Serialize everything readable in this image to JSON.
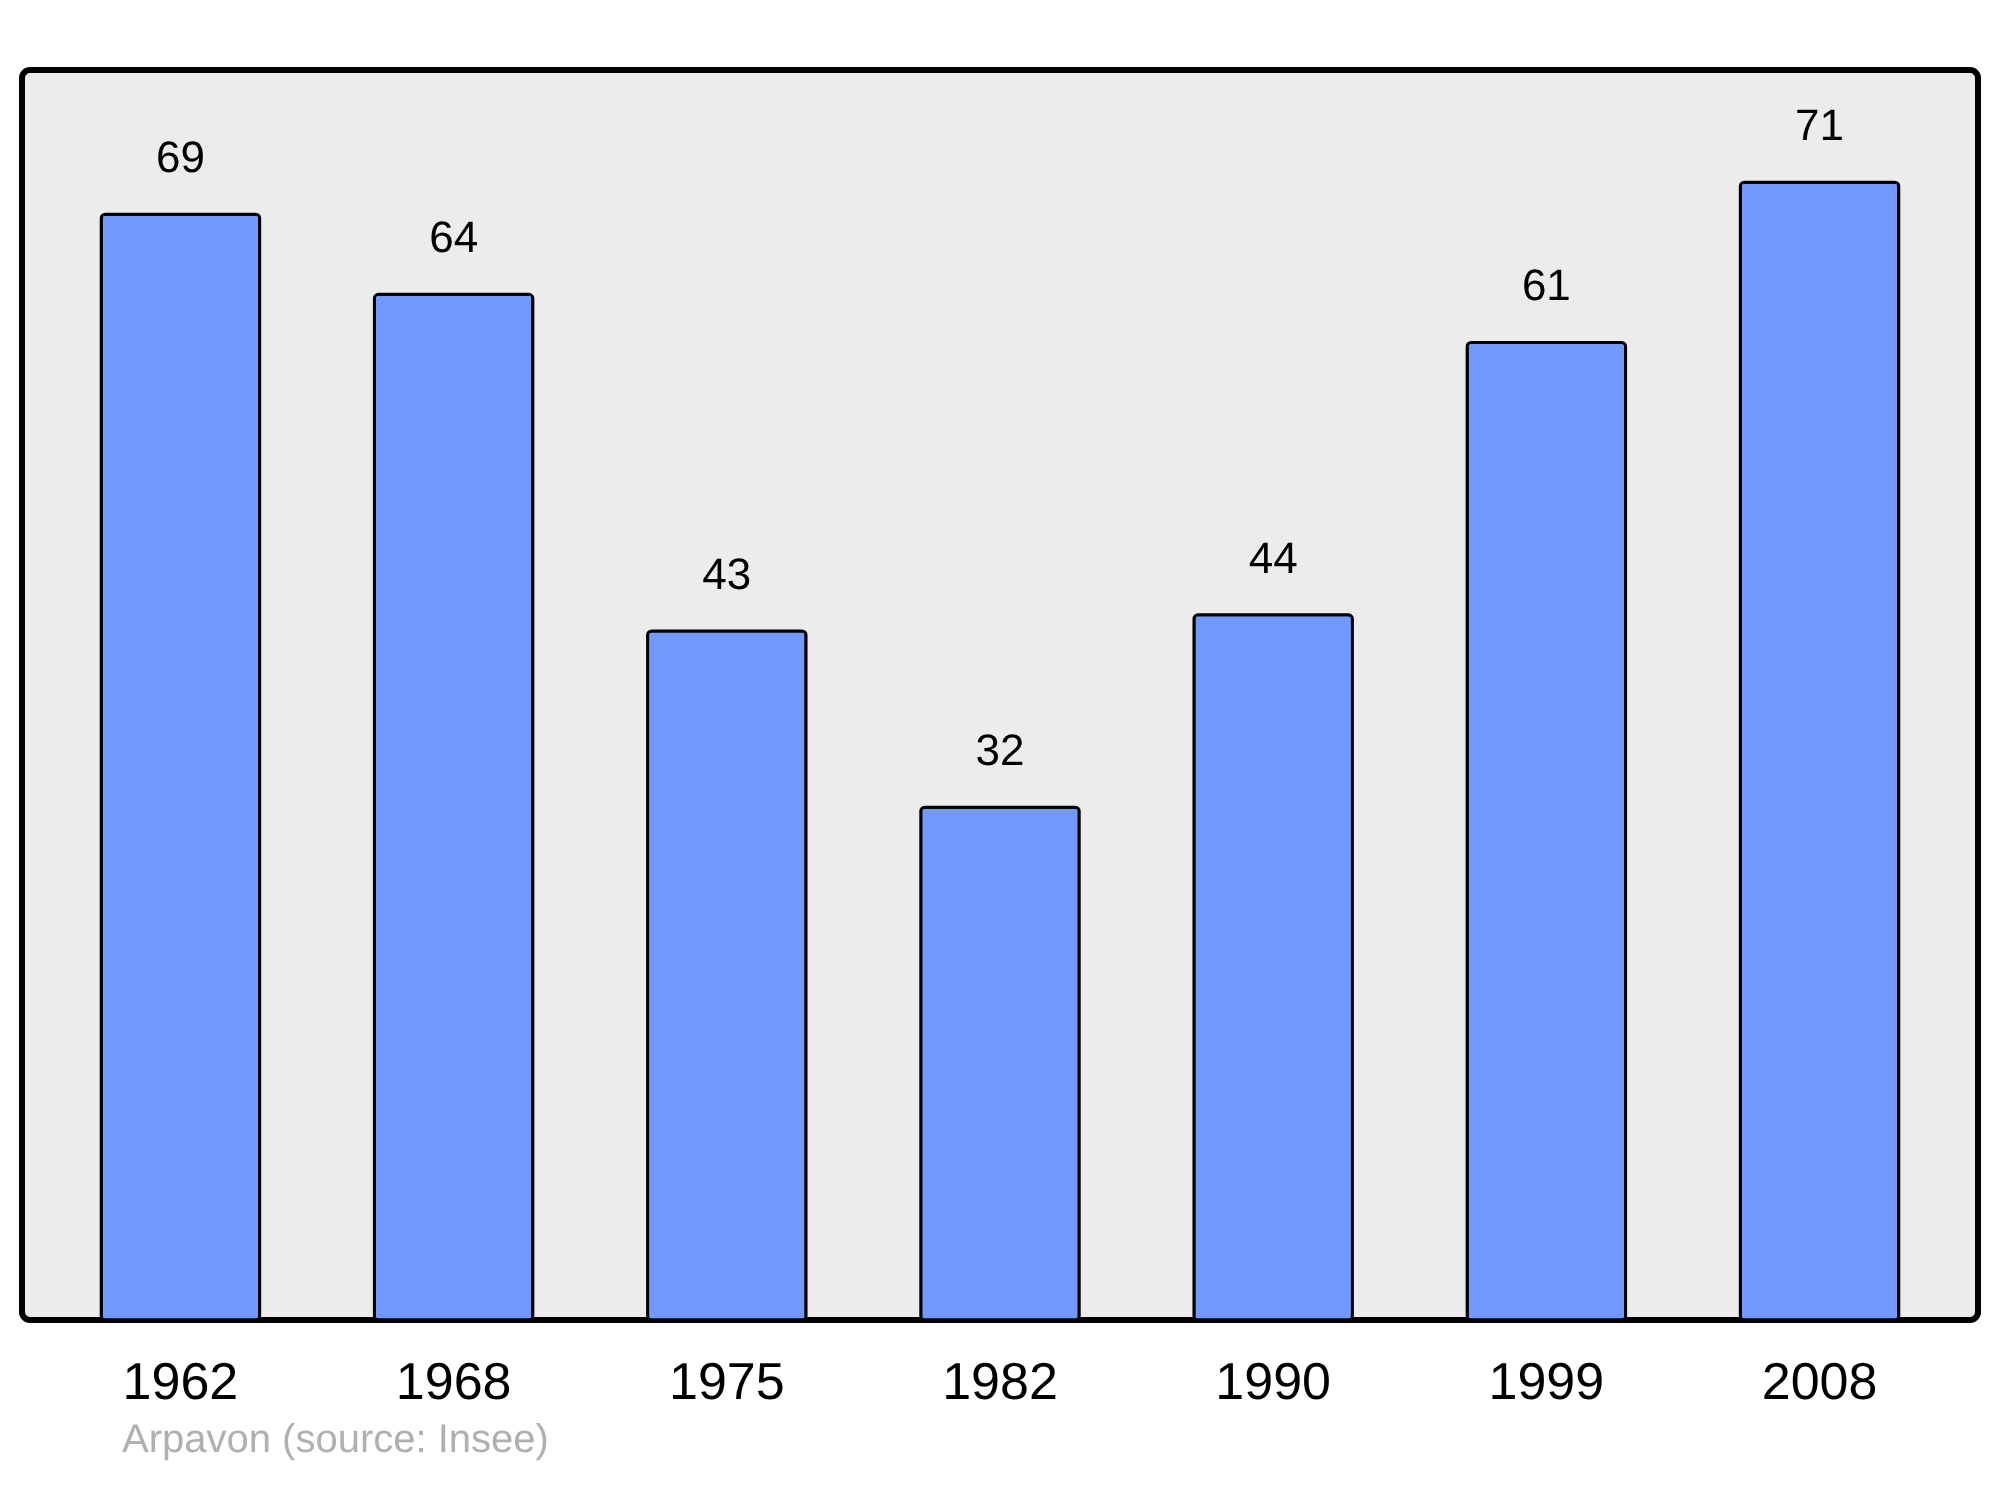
{
  "chart_data": {
    "type": "bar",
    "categories": [
      "1962",
      "1968",
      "1975",
      "1982",
      "1990",
      "1999",
      "2008"
    ],
    "values": [
      69,
      64,
      43,
      32,
      44,
      61,
      71
    ],
    "color": "#7299ff",
    "ylim": [
      0,
      78
    ],
    "data_labels": true,
    "grid": false,
    "annotations": [
      "Arpavon    (source: Insee)"
    ]
  }
}
